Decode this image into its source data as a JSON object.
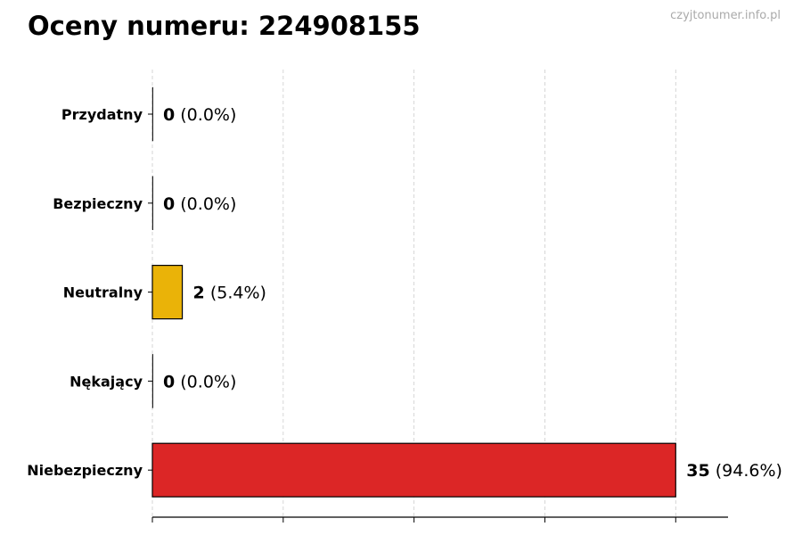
{
  "chart_data": {
    "type": "bar",
    "orientation": "horizontal",
    "title": "Oceny numeru: 224908155",
    "watermark": "czyjtonumer.info.pl",
    "categories": [
      "Przydatny",
      "Bezpieczny",
      "Neutralny",
      "Nękający",
      "Niebezpieczny"
    ],
    "values": [
      0,
      0,
      2,
      0,
      35
    ],
    "percent_labels": [
      "(0.0%)",
      "(0.0%)",
      "(5.4%)",
      "(0.0%)",
      "(94.6%)"
    ],
    "colors": [
      "#22c55e",
      "#3b82f6",
      "#eab308",
      "#f97316",
      "#dc2626"
    ],
    "xlim": [
      0,
      38.5
    ],
    "x_gridlines": [
      0,
      8.75,
      17.5,
      26.25,
      35
    ],
    "x_tick_labels": false,
    "grid": "x-dashed",
    "legend": "none"
  }
}
